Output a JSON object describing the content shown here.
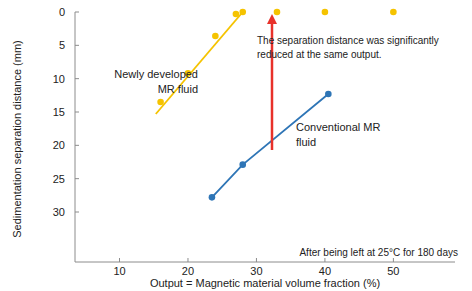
{
  "chart_data": {
    "type": "scatter",
    "x_label": "Output = Magnetic material volume fraction (%)",
    "y_label": "Sedimentation separation distance (mm)",
    "xlim": [
      3.5,
      59
    ],
    "ylim": [
      37.5,
      0
    ],
    "xticks": [
      10,
      20,
      30,
      40,
      50
    ],
    "yticks": [
      0,
      5,
      10,
      15,
      20,
      25,
      30
    ],
    "grid": false,
    "series": [
      {
        "name": "Newly developed\nMR fluid",
        "color": "#f5c300",
        "type": "scatter",
        "marker": "circle",
        "x": [
          16,
          20,
          24,
          27,
          28,
          33,
          40,
          50
        ],
        "values": [
          13.5,
          9.2,
          3.6,
          0.3,
          0,
          0,
          0,
          0
        ]
      },
      {
        "color": "#f5c300",
        "type": "line",
        "line_style": "solid",
        "x": [
          15.3,
          28
        ],
        "values": [
          15.3,
          0
        ]
      },
      {
        "name": "Conventional MR\nfluid",
        "color": "#2e75b6",
        "type": "line",
        "marker": "circle",
        "line_style": "solid",
        "x": [
          23.5,
          28,
          40.5
        ],
        "values": [
          27.8,
          22.9,
          12.3
        ]
      }
    ],
    "annotations": [
      {
        "text": "The separation distance was significantly\nreduced at the same output."
      },
      {
        "text": "After being left at 25°C for 180 days"
      }
    ]
  }
}
